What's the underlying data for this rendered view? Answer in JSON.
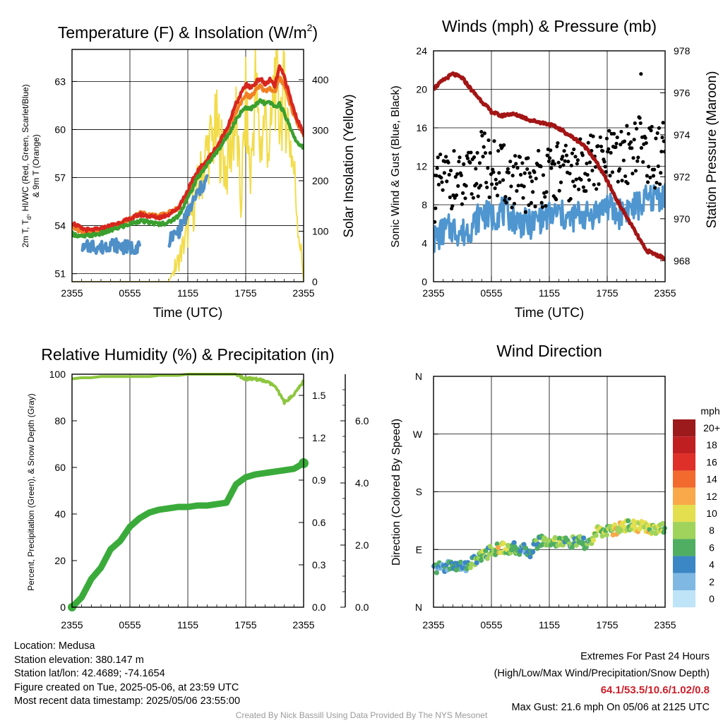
{
  "panels": {
    "temperature": {
      "title": "Temperature (F) & Insolation (W/m",
      "title_sup": "2",
      "title_close": ")",
      "ylabel_left_line1": "2m T, T",
      "ylabel_left_sub": "d",
      "ylabel_left_line1_rest": ", HI/WC (Red, Green, Scarlet/Blue)",
      "ylabel_left_line2": "& 9m T (Orange)",
      "ylabel_right": "Solar Insolation (Yellow)",
      "xlabel": "Time (UTC)"
    },
    "winds": {
      "title": "Winds (mph) & Pressure (mb)",
      "ylabel_left": "Sonic Wind & Gust (Blue, Black)",
      "ylabel_right": "Station Pressure (Maroon)",
      "xlabel": "Time (UTC)"
    },
    "humidity": {
      "title": "Relative Humidity (%) & Precipitation (in)",
      "ylabel_left": "Percent, Precipitation (Green), & Snow Depth (Gray)"
    },
    "wind_direction": {
      "title": "Wind Direction",
      "ylabel_left": "Direction (Colored By Speed)",
      "legend_title": "mph"
    }
  },
  "chart_data": [
    {
      "id": "temperature",
      "type": "line",
      "title": "Temperature (F) & Insolation (W/m2)",
      "xlabel": "Time (UTC)",
      "x_ticks": [
        "2355",
        "0555",
        "1155",
        "1755",
        "2355"
      ],
      "x_hours": [
        0,
        6,
        12,
        18,
        24
      ],
      "ylim": [
        50.5,
        65
      ],
      "y_ticks": [
        51,
        54,
        57,
        60,
        63
      ],
      "y2lim": [
        0,
        460
      ],
      "y2_ticks": [
        0,
        100,
        200,
        300,
        400
      ],
      "x": [
        0,
        1,
        2,
        3,
        4,
        5,
        6,
        7,
        8,
        9,
        10,
        11,
        12,
        13,
        14,
        15,
        16,
        17,
        17.5,
        18,
        18.5,
        19,
        19.5,
        20,
        20.5,
        21,
        21.5,
        22,
        22.5,
        23,
        23.5,
        24
      ],
      "series": [
        {
          "name": "2m T",
          "color": "#d7261e",
          "axis": "left",
          "values": [
            54.2,
            53.8,
            53.7,
            53.8,
            54.0,
            54.2,
            54.4,
            54.7,
            54.6,
            54.5,
            54.7,
            55.1,
            56.2,
            57.4,
            58.1,
            58.9,
            60.0,
            61.6,
            62.2,
            62.8,
            62.6,
            62.9,
            63.2,
            62.8,
            63.1,
            62.7,
            63.9,
            63.3,
            62.2,
            61.2,
            60.4,
            59.8
          ]
        },
        {
          "name": "HI/WC",
          "color": "#3a9f2e",
          "axis": "left",
          "values": [
            53.5,
            53.3,
            53.4,
            53.5,
            53.7,
            53.9,
            54.1,
            54.3,
            54.2,
            54.1,
            54.2,
            54.6,
            55.7,
            57.0,
            57.8,
            58.6,
            59.5,
            60.6,
            61.1,
            61.4,
            61.3,
            61.5,
            61.8,
            61.6,
            61.7,
            61.4,
            61.6,
            61.0,
            60.3,
            59.6,
            59.0,
            58.9
          ]
        },
        {
          "name": "9m T",
          "color": "#f07f24",
          "axis": "left",
          "values": [
            54.0,
            53.6,
            53.5,
            53.6,
            53.9,
            54.1,
            54.4,
            54.8,
            54.7,
            54.6,
            54.8,
            55.1,
            56.0,
            57.3,
            58.0,
            58.8,
            59.8,
            61.1,
            61.7,
            62.2,
            62.0,
            62.4,
            62.7,
            62.4,
            62.6,
            62.3,
            63.2,
            62.8,
            61.8,
            60.9,
            60.2,
            59.7
          ]
        },
        {
          "name": "Wind Chill",
          "color": "#4f8fc7",
          "axis": "left",
          "values": [
            null,
            52.4,
            52.8,
            52.6,
            52.9,
            52.7,
            52.6,
            52.8,
            null,
            null,
            53.1,
            53.6,
            54.8,
            56.0,
            56.9,
            null,
            null,
            null,
            null,
            null,
            null,
            null,
            null,
            null,
            null,
            null,
            null,
            null,
            null,
            null,
            null,
            58.6
          ]
        },
        {
          "name": "Solar Insolation",
          "color": "#f2dc4b",
          "axis": "right",
          "values": [
            0,
            0,
            0,
            0,
            0,
            0,
            0,
            0,
            0,
            0,
            0,
            40,
            100,
            180,
            260,
            300,
            220,
            320,
            150,
            350,
            200,
            390,
            260,
            330,
            250,
            410,
            330,
            370,
            300,
            220,
            100,
            10
          ]
        }
      ]
    },
    {
      "id": "winds",
      "type": "line",
      "title": "Winds (mph) & Pressure (mb)",
      "xlabel": "Time (UTC)",
      "x_ticks": [
        "2355",
        "0555",
        "1155",
        "1755",
        "2355"
      ],
      "x_hours": [
        0,
        6,
        12,
        18,
        24
      ],
      "ylim": [
        0,
        24
      ],
      "y_ticks": [
        0,
        4,
        8,
        12,
        16,
        20,
        24
      ],
      "y2lim": [
        967,
        978
      ],
      "y2_ticks": [
        968,
        970,
        972,
        974,
        976,
        978
      ],
      "x": [
        0,
        1,
        2,
        3,
        4,
        5,
        6,
        7,
        8,
        9,
        10,
        11,
        12,
        13,
        14,
        15,
        16,
        17,
        18,
        19,
        20,
        21,
        22,
        23,
        24
      ],
      "series": [
        {
          "name": "Sonic Wind",
          "color": "#4f96d0",
          "axis": "left",
          "values": [
            4.3,
            5.2,
            5.6,
            5.0,
            5.8,
            7.2,
            6.6,
            7.4,
            6.8,
            6.2,
            5.9,
            6.6,
            6.9,
            7.1,
            6.4,
            7.0,
            6.8,
            7.3,
            8.0,
            6.9,
            7.6,
            7.8,
            8.4,
            8.8,
            9.1
          ]
        },
        {
          "name": "Gust",
          "color": "#000000",
          "axis": "left",
          "values": [
            9.2,
            10.5,
            10.8,
            9.6,
            10.9,
            12.6,
            11.8,
            11.2,
            10.6,
            9.9,
            10.3,
            11.0,
            10.8,
            11.6,
            10.9,
            11.5,
            12.8,
            11.9,
            12.9,
            12.4,
            13.2,
            14.6,
            13.8,
            12.5,
            14.0
          ]
        },
        {
          "name": "Station Pressure",
          "color": "#a31515",
          "axis": "right",
          "values": [
            976.2,
            976.6,
            976.9,
            976.7,
            976.1,
            975.6,
            975.1,
            974.9,
            975.0,
            974.9,
            974.7,
            974.6,
            974.5,
            974.3,
            974.0,
            973.7,
            973.3,
            972.6,
            971.8,
            970.9,
            970.1,
            969.3,
            968.5,
            968.3,
            968.1
          ]
        }
      ],
      "max_gust": {
        "hour": 21.5,
        "value": 21.6
      }
    },
    {
      "id": "humidity",
      "type": "line",
      "title": "Relative Humidity (%) & Precipitation (in)",
      "x_ticks": [
        "2355",
        "0555",
        "1155",
        "1755",
        "2355"
      ],
      "x_hours": [
        0,
        6,
        12,
        18,
        24
      ],
      "ylim": [
        0,
        100
      ],
      "y_ticks": [
        0,
        20,
        40,
        60,
        80,
        100
      ],
      "y2lim": [
        0,
        1.65
      ],
      "y2_ticks": [
        "0.0",
        "0.3",
        "0.6",
        "0.9",
        "1.2",
        "1.5"
      ],
      "y3lim": [
        0,
        7.5
      ],
      "y3_ticks": [
        "0.0",
        "2.0",
        "4.0",
        "6.0"
      ],
      "x": [
        0,
        1,
        2,
        3,
        4,
        5,
        6,
        7,
        8,
        9,
        10,
        11,
        12,
        13,
        14,
        15,
        16,
        17,
        18,
        19,
        20,
        21,
        22,
        23,
        24
      ],
      "series": [
        {
          "name": "Relative Humidity",
          "color": "#8cc63f",
          "axis": "left",
          "values": [
            98,
            98.5,
            98.5,
            99,
            99,
            99,
            99,
            99,
            99,
            99.5,
            99.5,
            99.5,
            100,
            100,
            100,
            100,
            100,
            100,
            98,
            98,
            97,
            95,
            88,
            91,
            97
          ]
        },
        {
          "name": "Precipitation",
          "color": "#3aab3a",
          "axis": "right",
          "values": [
            0.0,
            0.07,
            0.2,
            0.28,
            0.41,
            0.47,
            0.57,
            0.63,
            0.67,
            0.69,
            0.7,
            0.71,
            0.71,
            0.72,
            0.72,
            0.73,
            0.74,
            0.87,
            0.92,
            0.94,
            0.95,
            0.96,
            0.97,
            0.98,
            1.02
          ]
        }
      ]
    },
    {
      "id": "wind_direction",
      "type": "scatter",
      "title": "Wind Direction",
      "x_ticks": [
        "2355",
        "0555",
        "1155",
        "1755",
        "2355"
      ],
      "x_hours": [
        0,
        6,
        12,
        18,
        24
      ],
      "y_ticks": [
        "N",
        "E",
        "S",
        "W",
        "N"
      ],
      "ylim": [
        0,
        360
      ],
      "x": [
        0,
        1,
        2,
        3,
        4,
        5,
        6,
        7,
        8,
        9,
        10,
        11,
        12,
        13,
        14,
        15,
        16,
        17,
        18,
        19,
        20,
        21,
        22,
        23,
        24
      ],
      "direction_deg": [
        60,
        63,
        66,
        62,
        70,
        80,
        88,
        92,
        93,
        90,
        87,
        105,
        101,
        104,
        100,
        102,
        98,
        117,
        120,
        121,
        128,
        127,
        124,
        123,
        123
      ],
      "speed_mph": [
        4,
        3,
        5,
        4,
        6,
        8,
        6,
        10,
        7,
        5,
        4,
        7,
        6,
        8,
        7,
        5,
        6,
        9,
        8,
        10,
        8,
        9,
        10,
        8,
        9
      ],
      "legend_labels": [
        "20+",
        "18",
        "16",
        "14",
        "12",
        "10",
        "8",
        "6",
        "4",
        "2",
        "0"
      ],
      "legend_colors": [
        "#9c1a1c",
        "#c01f22",
        "#de3028",
        "#f26a2d",
        "#f9a84a",
        "#e3df4e",
        "#9fd35b",
        "#4fae62",
        "#3b86c4",
        "#7fb9e3",
        "#bfe3f7"
      ]
    }
  ],
  "info": {
    "location": "Location: Medusa",
    "elevation": "Station elevation: 380.147 m",
    "latlon": "Station lat/lon: 42.4689; -74.1654",
    "created": "Figure created on Tue, 2025-05-06, at 23:59 UTC",
    "recent": "Most recent data timestamp: 2025/05/06 23:55:00"
  },
  "extremes": {
    "heading": "Extremes For Past 24 Hours",
    "subheading": "(High/Low/Max Wind/Precipitation/Snow Depth)",
    "values": "64.1/53.5/10.6/1.02/0.8",
    "max_gust": "Max Gust: 21.6 mph On 05/06 at 2125 UTC"
  },
  "credit": "Created By Nick Bassill Using Data Provided By The NYS Mesonet"
}
